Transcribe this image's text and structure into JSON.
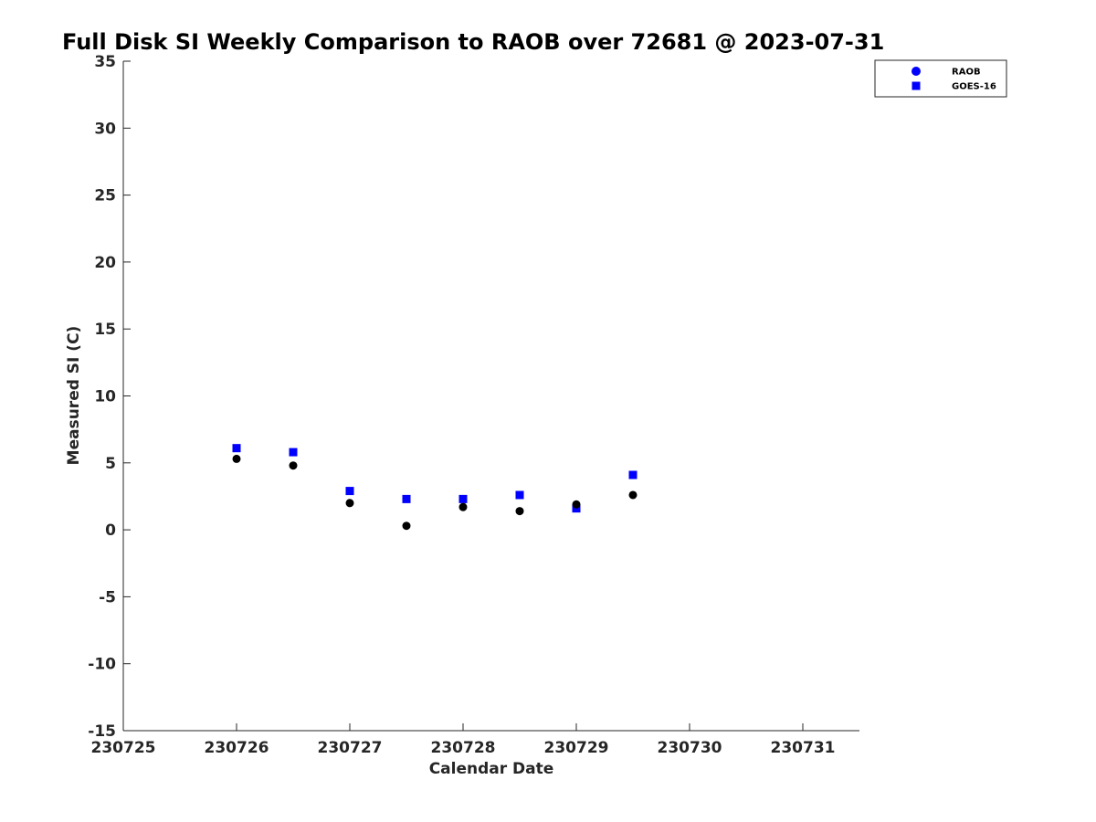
{
  "chart_data": {
    "type": "scatter",
    "title": "Full Disk SI Weekly Comparison to RAOB over 72681 @ 2023-07-31",
    "xlabel": "Calendar Date",
    "ylabel": "Measured SI (C)",
    "xlim": [
      230725,
      230731.5
    ],
    "ylim": [
      -15,
      35
    ],
    "xticks": [
      230725,
      230726,
      230727,
      230728,
      230729,
      230730,
      230731
    ],
    "xtick_labels": [
      "230725",
      "230726",
      "230727",
      "230728",
      "230729",
      "230730",
      "230731"
    ],
    "yticks": [
      -15,
      -10,
      -5,
      0,
      5,
      10,
      15,
      20,
      25,
      30,
      35
    ],
    "ytick_labels": [
      "-15",
      "-10",
      "-5",
      "0",
      "5",
      "10",
      "15",
      "20",
      "25",
      "30",
      "35"
    ],
    "grid": false,
    "legend_position": "top-right",
    "series": [
      {
        "name": "RAOB",
        "marker": "circle",
        "color": "#0000ff",
        "plotted_color": "#000000",
        "x": [
          230726.0,
          230726.5,
          230727.0,
          230727.5,
          230728.0,
          230728.5,
          230729.0,
          230729.5
        ],
        "y": [
          5.3,
          4.8,
          2.0,
          0.3,
          1.7,
          1.4,
          1.9,
          2.6
        ]
      },
      {
        "name": "GOES-16",
        "marker": "square",
        "color": "#0000ff",
        "x": [
          230726.0,
          230726.5,
          230727.0,
          230727.5,
          230728.0,
          230728.5,
          230729.0,
          230729.5
        ],
        "y": [
          6.1,
          5.8,
          2.9,
          2.3,
          2.3,
          2.6,
          1.6,
          4.1
        ]
      }
    ]
  }
}
